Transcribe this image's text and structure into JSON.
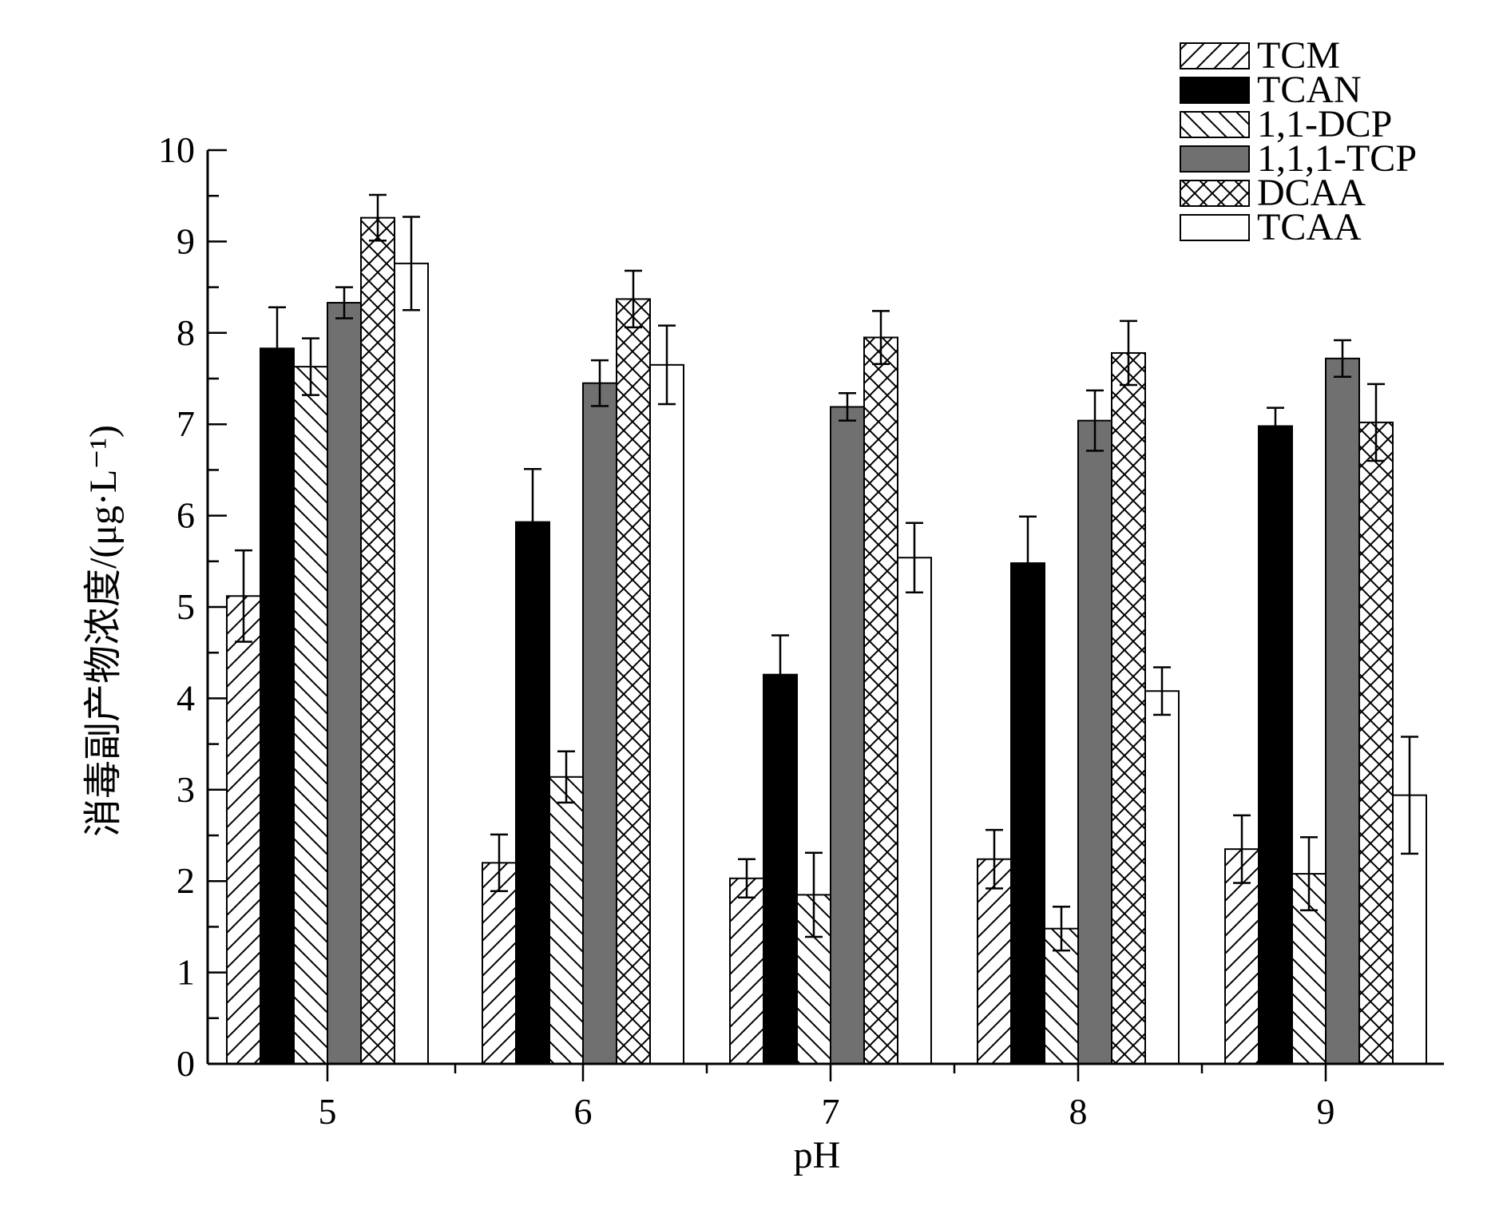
{
  "chart_data": {
    "type": "bar",
    "title": "",
    "xlabel": "pH",
    "ylabel": "消毒副产物浓度/(μg·L⁻¹)",
    "categories": [
      "5",
      "6",
      "7",
      "8",
      "9"
    ],
    "ylim": [
      0,
      10
    ],
    "yticks": [
      "0",
      "1",
      "2",
      "3",
      "4",
      "5",
      "6",
      "7",
      "8",
      "9",
      "10"
    ],
    "grid": false,
    "legend_position": "top-right",
    "series": [
      {
        "name": "TCM",
        "pattern": "diagonal-forward",
        "values": [
          5.12,
          2.2,
          2.03,
          2.24,
          2.35
        ],
        "errors": [
          0.5,
          0.31,
          0.21,
          0.32,
          0.37
        ]
      },
      {
        "name": "TCAN",
        "pattern": "solid-black",
        "values": [
          7.83,
          5.93,
          4.26,
          5.48,
          6.98
        ],
        "errors": [
          0.45,
          0.58,
          0.43,
          0.51,
          0.2
        ]
      },
      {
        "name": "1,1-DCP",
        "pattern": "diagonal-back",
        "values": [
          7.63,
          3.14,
          1.85,
          1.48,
          2.08
        ],
        "errors": [
          0.31,
          0.28,
          0.46,
          0.24,
          0.4
        ]
      },
      {
        "name": "1,1,1-TCP",
        "pattern": "solid-gray",
        "values": [
          8.33,
          7.45,
          7.19,
          7.04,
          7.72
        ],
        "errors": [
          0.17,
          0.25,
          0.15,
          0.33,
          0.2
        ]
      },
      {
        "name": "DCAA",
        "pattern": "crosshatch",
        "values": [
          9.26,
          8.37,
          7.95,
          7.78,
          7.02
        ],
        "errors": [
          0.25,
          0.31,
          0.29,
          0.35,
          0.42
        ]
      },
      {
        "name": "TCAA",
        "pattern": "empty",
        "values": [
          8.76,
          7.65,
          5.54,
          4.08,
          2.94
        ],
        "errors": [
          0.51,
          0.43,
          0.38,
          0.26,
          0.64
        ]
      }
    ]
  }
}
